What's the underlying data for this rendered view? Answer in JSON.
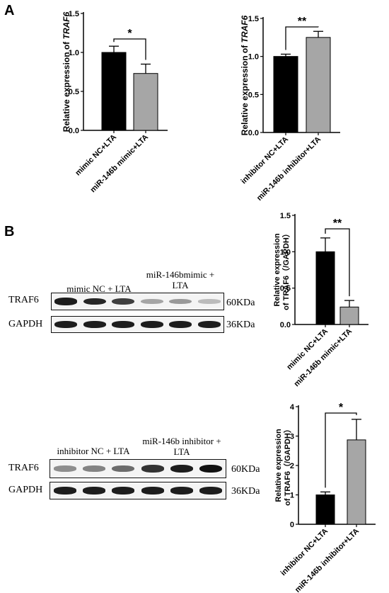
{
  "panel_labels": [
    "A",
    "B"
  ],
  "chart_data": [
    {
      "type": "bar",
      "ylabel": "Relative expression of TRAF6",
      "categories": [
        "mimic NC+LTA",
        "miR-146b mimic+LTA"
      ],
      "values": [
        1.0,
        0.73
      ],
      "errors": [
        0.08,
        0.12
      ],
      "colors": [
        "#000000",
        "#a6a6a6"
      ],
      "ylim": [
        0,
        1.5
      ],
      "yticks": [
        "0.0",
        "0.5",
        "1.0",
        "1.5"
      ],
      "significance": "*"
    },
    {
      "type": "bar",
      "ylabel": "Relative expression of TRAF6",
      "categories": [
        "inhibitor NC+LTA",
        "miR-146b inhibitor+LTA"
      ],
      "values": [
        1.0,
        1.25
      ],
      "errors": [
        0.03,
        0.08
      ],
      "colors": [
        "#000000",
        "#a6a6a6"
      ],
      "ylim": [
        0,
        1.5
      ],
      "yticks": [
        "0.0",
        "0.5",
        "1.0",
        "1.5"
      ],
      "significance": "**"
    },
    {
      "type": "bar",
      "ylabel_lines": [
        "Relative expression",
        "of TRAF6（/GAPDH）"
      ],
      "categories": [
        "mimic NC+LTA",
        "miR-146b mimic+LTA"
      ],
      "values": [
        1.0,
        0.24
      ],
      "errors": [
        0.19,
        0.09
      ],
      "colors": [
        "#000000",
        "#a6a6a6"
      ],
      "ylim": [
        0,
        1.5
      ],
      "yticks": [
        "0.0",
        "0.5",
        "1.0",
        "1.5"
      ],
      "significance": "**"
    },
    {
      "type": "bar",
      "ylabel_lines": [
        "Relative expression",
        "of TRAF6（/GAPDH）"
      ],
      "categories": [
        "inhibitor NC+LTA",
        "miR-146b inhibitor+LTA"
      ],
      "values": [
        1.0,
        2.87
      ],
      "errors": [
        0.1,
        0.7
      ],
      "colors": [
        "#000000",
        "#a6a6a6"
      ],
      "ylim": [
        0,
        4
      ],
      "yticks": [
        "0",
        "1",
        "2",
        "3",
        "4"
      ],
      "significance": "*"
    }
  ],
  "blots": [
    {
      "group1": "mimic NC + LTA",
      "group2": "miR-146bmimic + LTA",
      "row1": "TRAF6",
      "row1_size": "60KDa",
      "row2": "GAPDH",
      "row2_size": "36KDa",
      "row1_intensity": [
        0.95,
        0.9,
        0.8,
        0.35,
        0.4,
        0.25
      ],
      "row2_intensity": [
        0.95,
        0.95,
        0.95,
        0.95,
        0.95,
        0.95
      ]
    },
    {
      "group1": "inhibitor NC + LTA",
      "group2": "miR-146b inhibitor + LTA",
      "row1": "TRAF6",
      "row1_size": "60KDa",
      "row2": "GAPDH",
      "row2_size": "36KDa",
      "row1_intensity": [
        0.45,
        0.5,
        0.6,
        0.85,
        0.95,
        1.0
      ],
      "row2_intensity": [
        0.95,
        0.95,
        0.95,
        0.95,
        0.95,
        0.95
      ]
    }
  ]
}
